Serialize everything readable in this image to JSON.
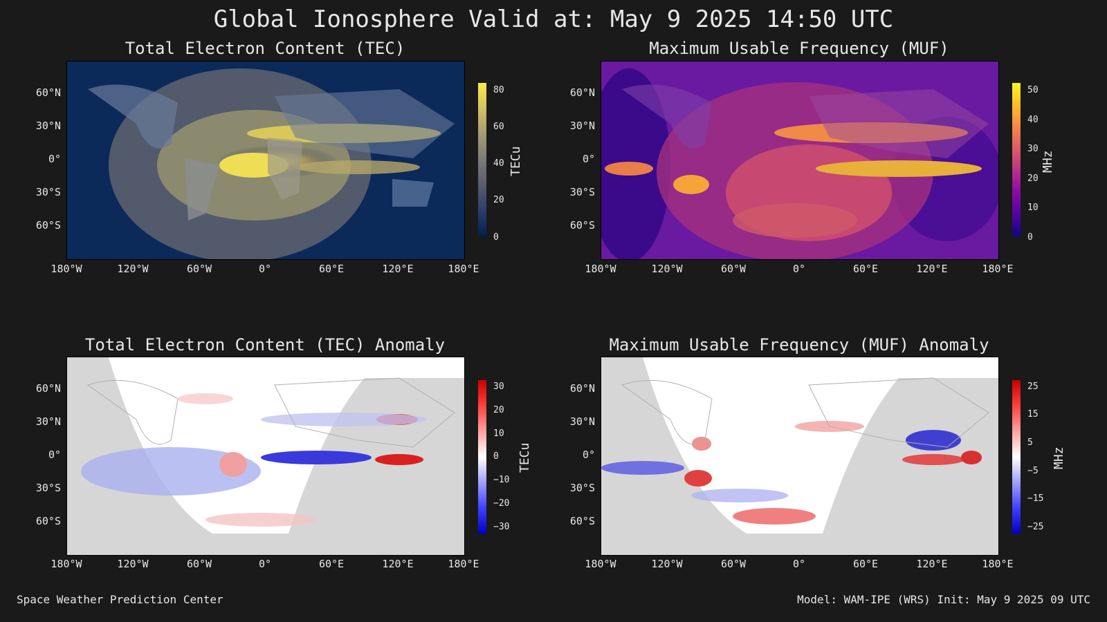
{
  "title": "Global Ionosphere Valid at: May 9 2025 14:50 UTC",
  "panels": [
    {
      "title": "Total Electron Content (TEC)",
      "cbar_label": "TECu",
      "cbar_ticks": [
        "80",
        "60",
        "40",
        "20",
        "0"
      ],
      "colormap": "cividis"
    },
    {
      "title": "Maximum Usable Frequency (MUF)",
      "cbar_label": "MHz",
      "cbar_ticks": [
        "50",
        "40",
        "30",
        "20",
        "10",
        "0"
      ],
      "colormap": "plasma"
    },
    {
      "title": "Total Electron Content (TEC) Anomaly",
      "cbar_label": "TECu",
      "cbar_ticks": [
        "30",
        "20",
        "10",
        "0",
        "−10",
        "−20",
        "−30"
      ],
      "colormap": "bwr"
    },
    {
      "title": "Maximum Usable Frequency (MUF) Anomaly",
      "cbar_label": "MHz",
      "cbar_ticks": [
        "25",
        "15",
        "5",
        "−5",
        "−15",
        "−25"
      ],
      "colormap": "bwr"
    }
  ],
  "lat_ticks": [
    "60°N",
    "30°N",
    "0°",
    "30°S",
    "60°S"
  ],
  "lon_ticks": [
    "180°W",
    "120°W",
    "60°W",
    "0°",
    "60°E",
    "120°E",
    "180°E"
  ],
  "footer": {
    "left": "Space Weather Prediction Center",
    "right": "Model: WAM-IPE (WRS) Init: May 9 2025 09 UTC"
  }
}
